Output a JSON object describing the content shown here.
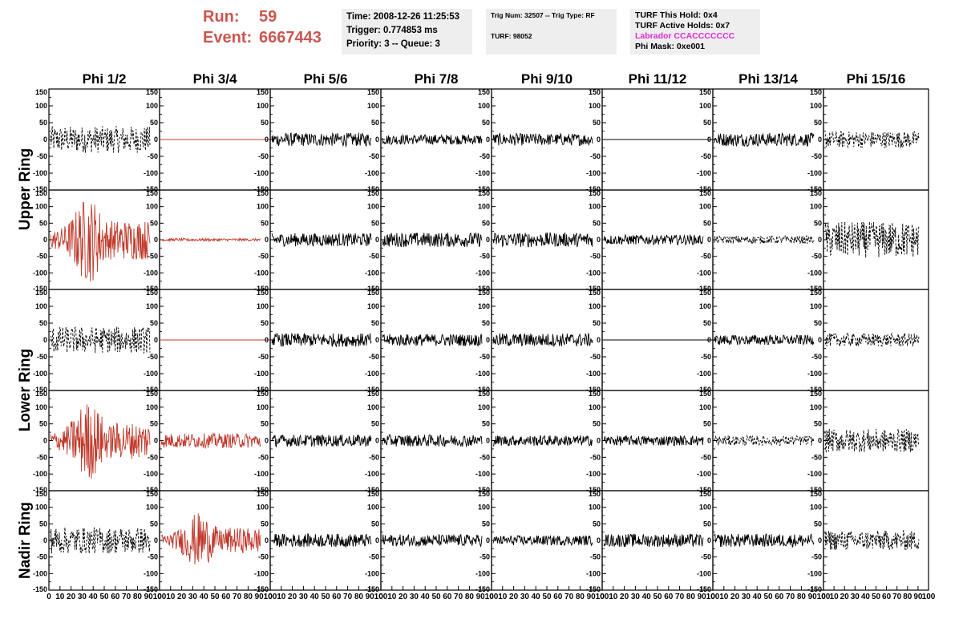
{
  "header": {
    "run_label": "Run:",
    "run_value": "59",
    "event_label": "Event:",
    "event_value": "6667443",
    "time_panel": [
      "Time: 2008-12-26 11:25:53",
      "Trigger: 0.774853 ms",
      "Priority: 3 -- Queue: 3"
    ],
    "trig_panel": [
      "Trig Num: 32507 -- Trig Type: RF",
      "TURF: 98052"
    ],
    "turf_panel": [
      "TURF This Hold: 0x4",
      "TURF Active Holds: 0x7",
      "Labrador CCACCCCCCC",
      "Phi Mask: 0xe001"
    ]
  },
  "colors": {
    "run_text": "#c9574f",
    "highlight_trace": "#c0392b",
    "trace": "#000000",
    "labrador_text": "#e02ad8"
  },
  "chart_data": {
    "type": "line",
    "columns": [
      "Phi 1/2",
      "Phi 3/4",
      "Phi 5/6",
      "Phi 7/8",
      "Phi 9/10",
      "Phi 11/12",
      "Phi 13/14",
      "Phi 15/16"
    ],
    "row_labels": [
      "Upper Ring",
      "Lower Ring",
      "Nadir Ring"
    ],
    "ylim": [
      -150,
      150
    ],
    "y_ticks": [
      "150",
      "100",
      "50",
      "0",
      "-50",
      "-100",
      "-150"
    ],
    "xlim": [
      0,
      100
    ],
    "x_ticks": [
      "0",
      "10",
      "20",
      "30",
      "40",
      "50",
      "60",
      "70",
      "80",
      "90",
      "100"
    ],
    "grid": false,
    "panels": [
      [
        {
          "amp": 40,
          "style": "dashed",
          "color": "black"
        },
        {
          "amp": 0,
          "style": "flat",
          "color": "red"
        },
        {
          "amp": 20,
          "style": "solid",
          "color": "black"
        },
        {
          "amp": 15,
          "style": "solid",
          "color": "black"
        },
        {
          "amp": 18,
          "style": "solid",
          "color": "black"
        },
        {
          "amp": 0,
          "style": "flat",
          "color": "black"
        },
        {
          "amp": 20,
          "style": "solid",
          "color": "black"
        },
        {
          "amp": 25,
          "style": "dashed",
          "color": "black"
        }
      ],
      [
        {
          "amp": 110,
          "style": "solid",
          "color": "red",
          "burst": true
        },
        {
          "amp": 4,
          "style": "solid",
          "color": "red"
        },
        {
          "amp": 20,
          "style": "solid",
          "color": "black"
        },
        {
          "amp": 22,
          "style": "solid",
          "color": "black"
        },
        {
          "amp": 22,
          "style": "solid",
          "color": "black"
        },
        {
          "amp": 15,
          "style": "solid",
          "color": "black"
        },
        {
          "amp": 12,
          "style": "dashed",
          "color": "black"
        },
        {
          "amp": 55,
          "style": "dashed",
          "color": "black"
        }
      ],
      [
        {
          "amp": 40,
          "style": "dashed",
          "color": "black"
        },
        {
          "amp": 0,
          "style": "flat",
          "color": "red"
        },
        {
          "amp": 20,
          "style": "solid",
          "color": "black"
        },
        {
          "amp": 18,
          "style": "solid",
          "color": "black"
        },
        {
          "amp": 20,
          "style": "solid",
          "color": "black"
        },
        {
          "amp": 0,
          "style": "flat",
          "color": "black"
        },
        {
          "amp": 15,
          "style": "solid",
          "color": "black"
        },
        {
          "amp": 20,
          "style": "dashed",
          "color": "black"
        }
      ],
      [
        {
          "amp": 100,
          "style": "solid",
          "color": "red",
          "burst": true
        },
        {
          "amp": 22,
          "style": "solid",
          "color": "red"
        },
        {
          "amp": 18,
          "style": "solid",
          "color": "black"
        },
        {
          "amp": 18,
          "style": "solid",
          "color": "black"
        },
        {
          "amp": 16,
          "style": "solid",
          "color": "black"
        },
        {
          "amp": 15,
          "style": "solid",
          "color": "black"
        },
        {
          "amp": 15,
          "style": "dashed",
          "color": "black"
        },
        {
          "amp": 35,
          "style": "dashed",
          "color": "black"
        }
      ],
      [
        {
          "amp": 40,
          "style": "dashed",
          "color": "black"
        },
        {
          "amp": 70,
          "style": "solid",
          "color": "red",
          "burst": true
        },
        {
          "amp": 20,
          "style": "solid",
          "color": "black"
        },
        {
          "amp": 18,
          "style": "solid",
          "color": "black"
        },
        {
          "amp": 15,
          "style": "solid",
          "color": "black"
        },
        {
          "amp": 20,
          "style": "solid",
          "color": "black"
        },
        {
          "amp": 20,
          "style": "solid",
          "color": "black"
        },
        {
          "amp": 30,
          "style": "dashed",
          "color": "black"
        }
      ]
    ]
  }
}
